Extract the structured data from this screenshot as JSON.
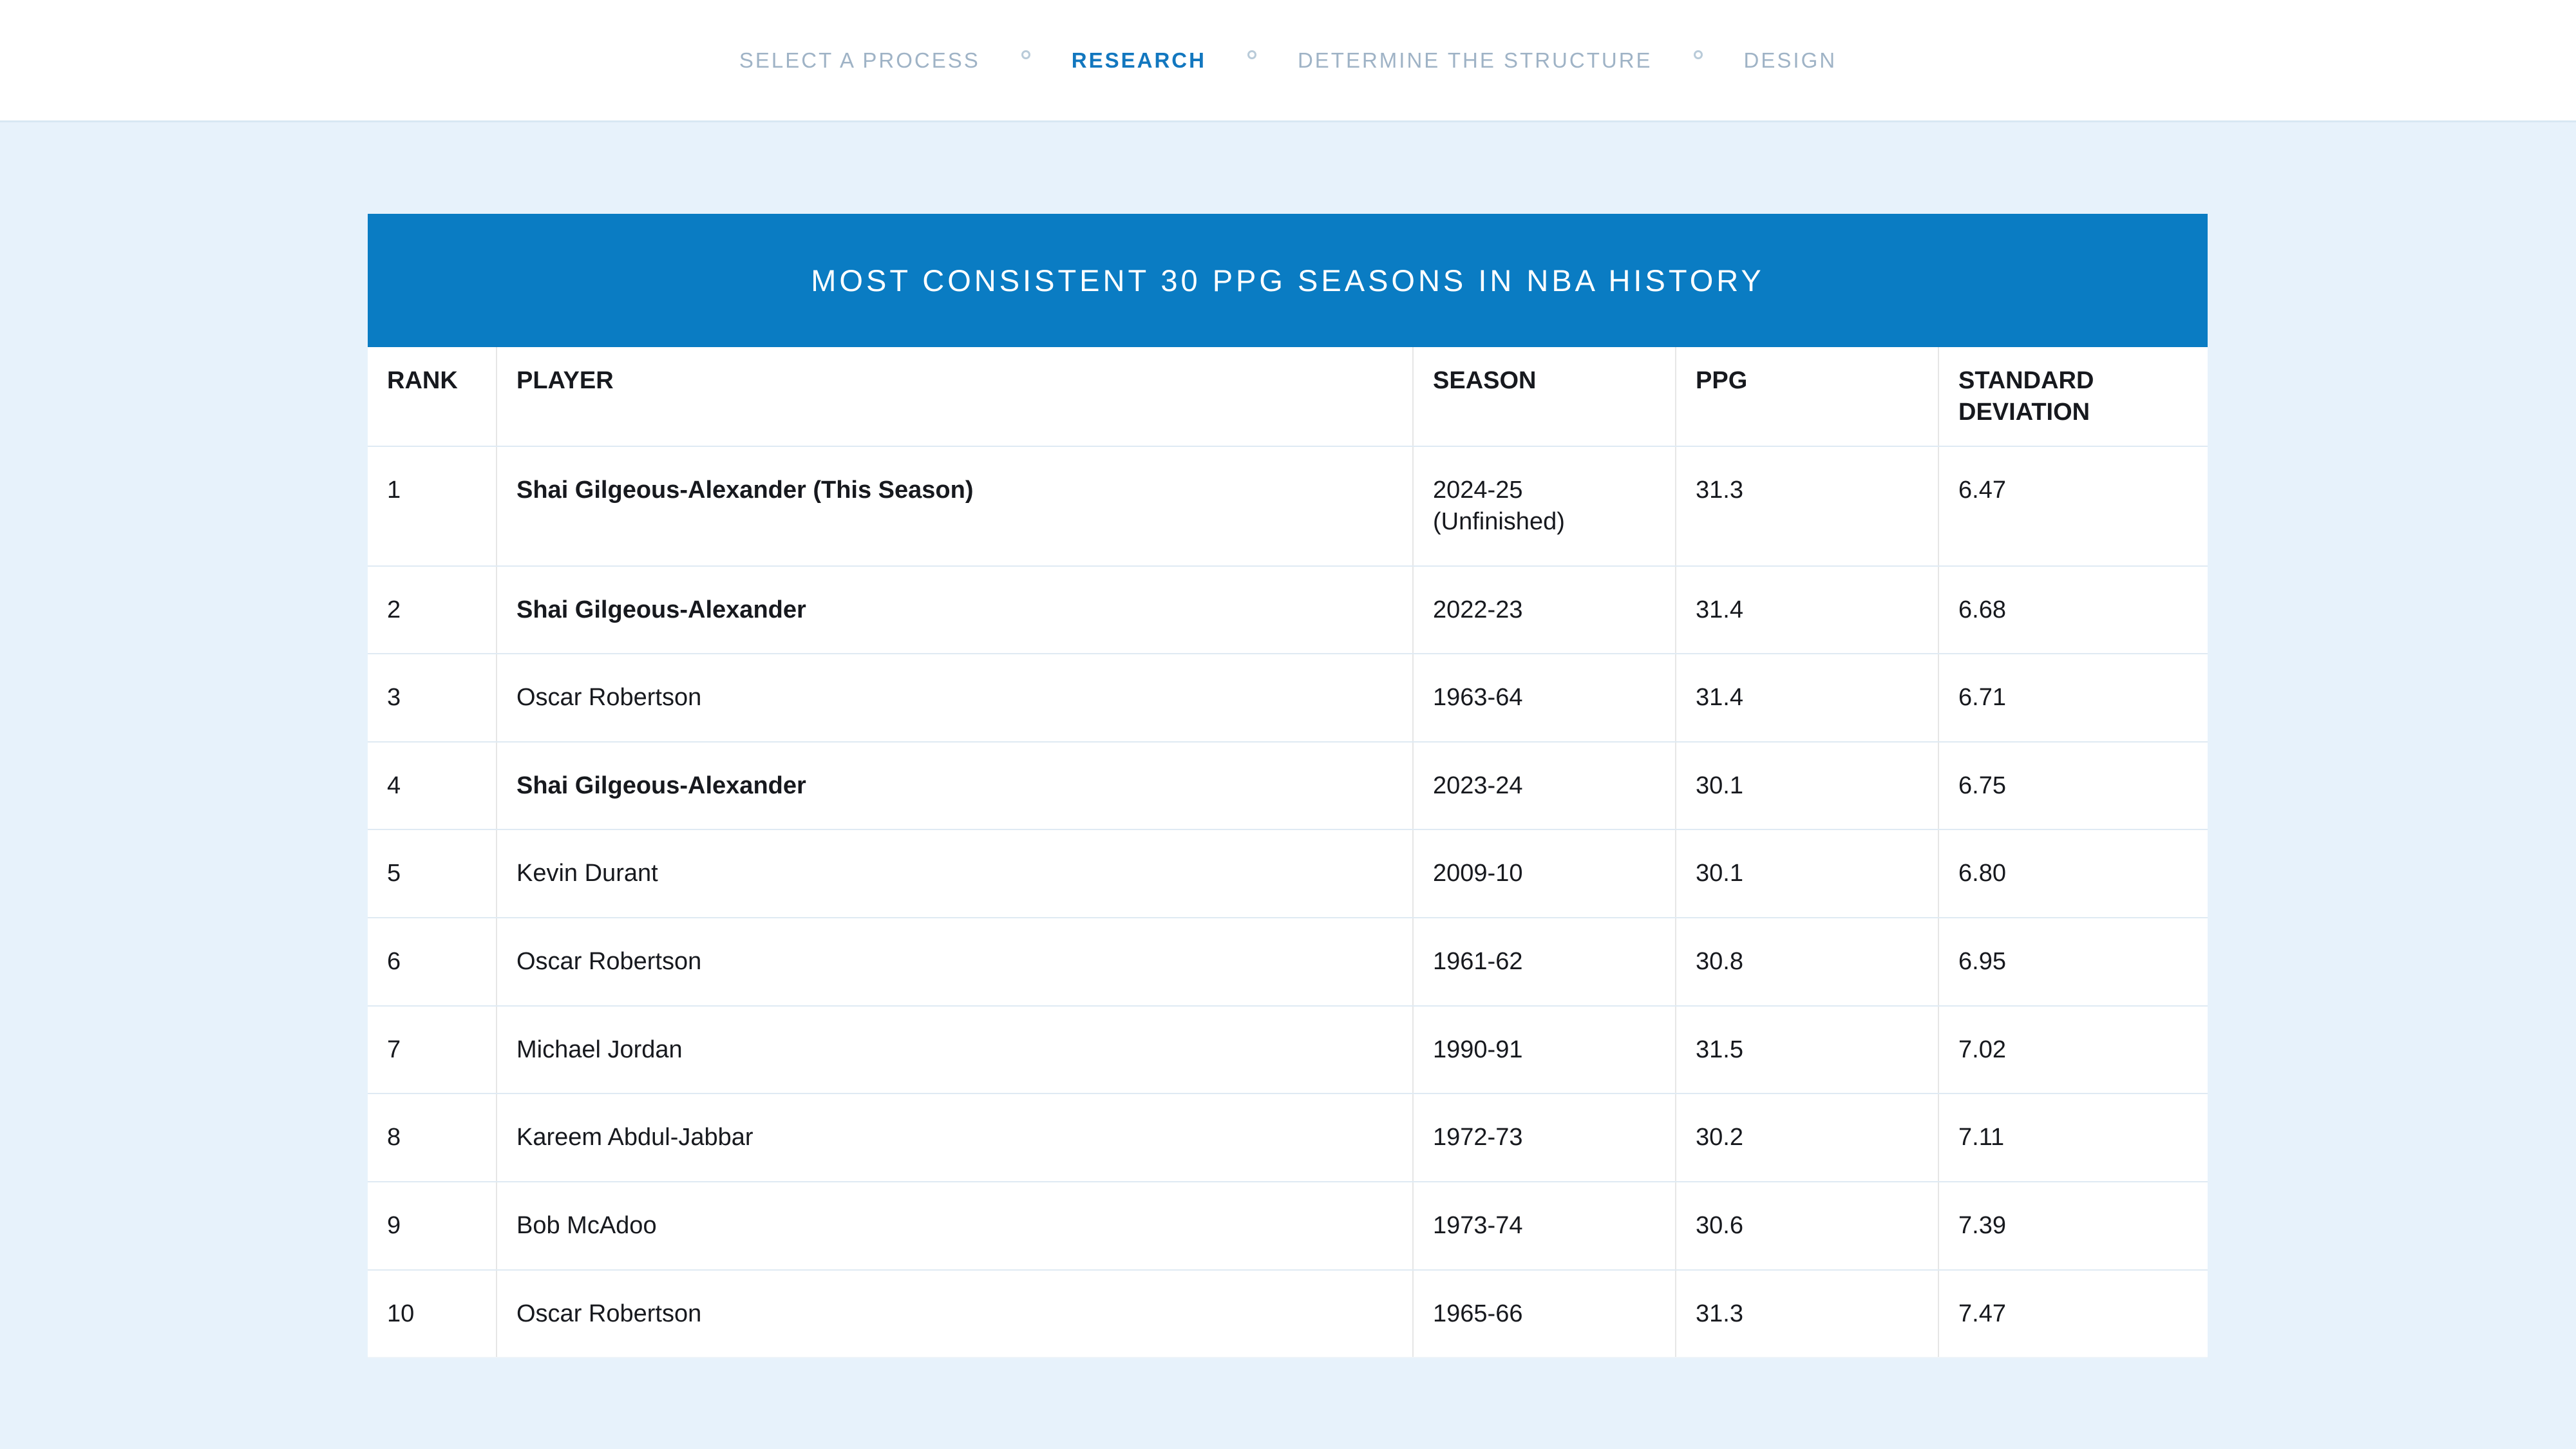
{
  "page": {
    "background_color": "#e7f2fb",
    "accent_color": "#0a7cc3"
  },
  "nav": {
    "items": [
      {
        "label": "SELECT A PROCESS",
        "active": false
      },
      {
        "label": "RESEARCH",
        "active": true
      },
      {
        "label": "DETERMINE THE STRUCTURE",
        "active": false
      },
      {
        "label": "DESIGN",
        "active": false
      }
    ]
  },
  "table": {
    "title": "MOST CONSISTENT 30 PPG SEASONS IN NBA HISTORY",
    "columns": [
      "RANK",
      "PLAYER",
      "SEASON",
      "PPG",
      "STANDARD DEVIATION"
    ],
    "rows": [
      {
        "rank": "1",
        "player": "Shai Gilgeous-Alexander (This Season)",
        "bold": true,
        "season": "2024-25 (Unfinished)",
        "ppg": "31.3",
        "std": "6.47"
      },
      {
        "rank": "2",
        "player": "Shai Gilgeous-Alexander",
        "bold": true,
        "season": "2022-23",
        "ppg": "31.4",
        "std": "6.68"
      },
      {
        "rank": "3",
        "player": "Oscar Robertson",
        "bold": false,
        "season": "1963-64",
        "ppg": "31.4",
        "std": "6.71"
      },
      {
        "rank": "4",
        "player": "Shai Gilgeous-Alexander",
        "bold": true,
        "season": "2023-24",
        "ppg": "30.1",
        "std": "6.75"
      },
      {
        "rank": "5",
        "player": "Kevin Durant",
        "bold": false,
        "season": "2009-10",
        "ppg": "30.1",
        "std": "6.80"
      },
      {
        "rank": "6",
        "player": "Oscar Robertson",
        "bold": false,
        "season": "1961-62",
        "ppg": "30.8",
        "std": "6.95"
      },
      {
        "rank": "7",
        "player": "Michael Jordan",
        "bold": false,
        "season": "1990-91",
        "ppg": "31.5",
        "std": "7.02"
      },
      {
        "rank": "8",
        "player": "Kareem Abdul-Jabbar",
        "bold": false,
        "season": "1972-73",
        "ppg": "30.2",
        "std": "7.11"
      },
      {
        "rank": "9",
        "player": "Bob McAdoo",
        "bold": false,
        "season": "1973-74",
        "ppg": "30.6",
        "std": "7.39"
      },
      {
        "rank": "10",
        "player": "Oscar Robertson",
        "bold": false,
        "season": "1965-66",
        "ppg": "31.3",
        "std": "7.47"
      }
    ]
  }
}
